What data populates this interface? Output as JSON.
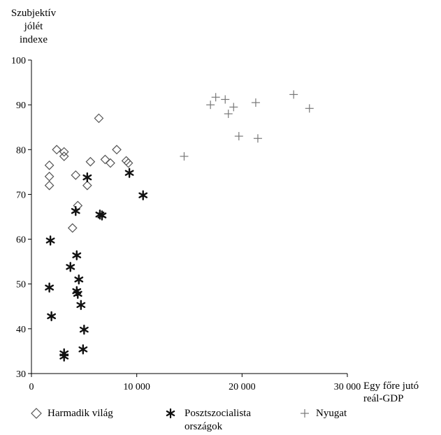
{
  "chart_data": {
    "type": "scatter",
    "ylabel_lines": [
      "Szubjektív",
      "jólét",
      "indexe"
    ],
    "xlabel_lines": [
      "Egy főre jutó",
      "reál-GDP"
    ],
    "xlim": [
      0,
      30000
    ],
    "ylim": [
      30,
      100
    ],
    "x_ticks": [
      0,
      10000,
      20000,
      30000
    ],
    "x_tick_labels": [
      "0",
      "10 000",
      "20 000",
      "30 000"
    ],
    "y_ticks": [
      30,
      40,
      50,
      60,
      70,
      80,
      90,
      100
    ],
    "y_tick_labels": [
      "30",
      "40",
      "50",
      "60",
      "70",
      "80",
      "90",
      "100"
    ],
    "grid": false,
    "legend_position": "bottom",
    "series": [
      {
        "name": "Harmadik világ",
        "marker": "diamond",
        "points": [
          {
            "x": 1700,
            "y": 76.5
          },
          {
            "x": 1700,
            "y": 74
          },
          {
            "x": 1700,
            "y": 72
          },
          {
            "x": 2400,
            "y": 80
          },
          {
            "x": 3100,
            "y": 79.5
          },
          {
            "x": 3100,
            "y": 78.5
          },
          {
            "x": 3900,
            "y": 62.5
          },
          {
            "x": 4200,
            "y": 74.3
          },
          {
            "x": 4400,
            "y": 67.5
          },
          {
            "x": 5300,
            "y": 72
          },
          {
            "x": 5600,
            "y": 77.3
          },
          {
            "x": 6400,
            "y": 87
          },
          {
            "x": 7000,
            "y": 77.8
          },
          {
            "x": 7500,
            "y": 77
          },
          {
            "x": 8100,
            "y": 80
          },
          {
            "x": 9000,
            "y": 77.5
          },
          {
            "x": 9200,
            "y": 77
          }
        ]
      },
      {
        "name": "Posztszocialista országok",
        "marker": "asterisk",
        "points": [
          {
            "x": 1800,
            "y": 59.7
          },
          {
            "x": 1700,
            "y": 49.2
          },
          {
            "x": 1900,
            "y": 42.8
          },
          {
            "x": 3100,
            "y": 34.5
          },
          {
            "x": 3100,
            "y": 33.8
          },
          {
            "x": 3700,
            "y": 53.8
          },
          {
            "x": 4200,
            "y": 66.3
          },
          {
            "x": 4300,
            "y": 56.4
          },
          {
            "x": 4300,
            "y": 48.4
          },
          {
            "x": 4400,
            "y": 47.8
          },
          {
            "x": 4500,
            "y": 51
          },
          {
            "x": 4700,
            "y": 45.3
          },
          {
            "x": 5000,
            "y": 39.8
          },
          {
            "x": 4900,
            "y": 35.4
          },
          {
            "x": 5300,
            "y": 73.8
          },
          {
            "x": 6500,
            "y": 65.5
          },
          {
            "x": 6700,
            "y": 65.3
          },
          {
            "x": 9300,
            "y": 74.8
          },
          {
            "x": 10600,
            "y": 69.8
          }
        ]
      },
      {
        "name": "Nyugat",
        "marker": "plus",
        "points": [
          {
            "x": 14500,
            "y": 78.5
          },
          {
            "x": 17000,
            "y": 90
          },
          {
            "x": 17500,
            "y": 91.7
          },
          {
            "x": 18400,
            "y": 91.2
          },
          {
            "x": 18700,
            "y": 88
          },
          {
            "x": 19200,
            "y": 89.5
          },
          {
            "x": 19700,
            "y": 83
          },
          {
            "x": 21300,
            "y": 90.5
          },
          {
            "x": 21500,
            "y": 82.5
          },
          {
            "x": 24900,
            "y": 92.3
          },
          {
            "x": 26400,
            "y": 89.2
          }
        ]
      }
    ]
  }
}
